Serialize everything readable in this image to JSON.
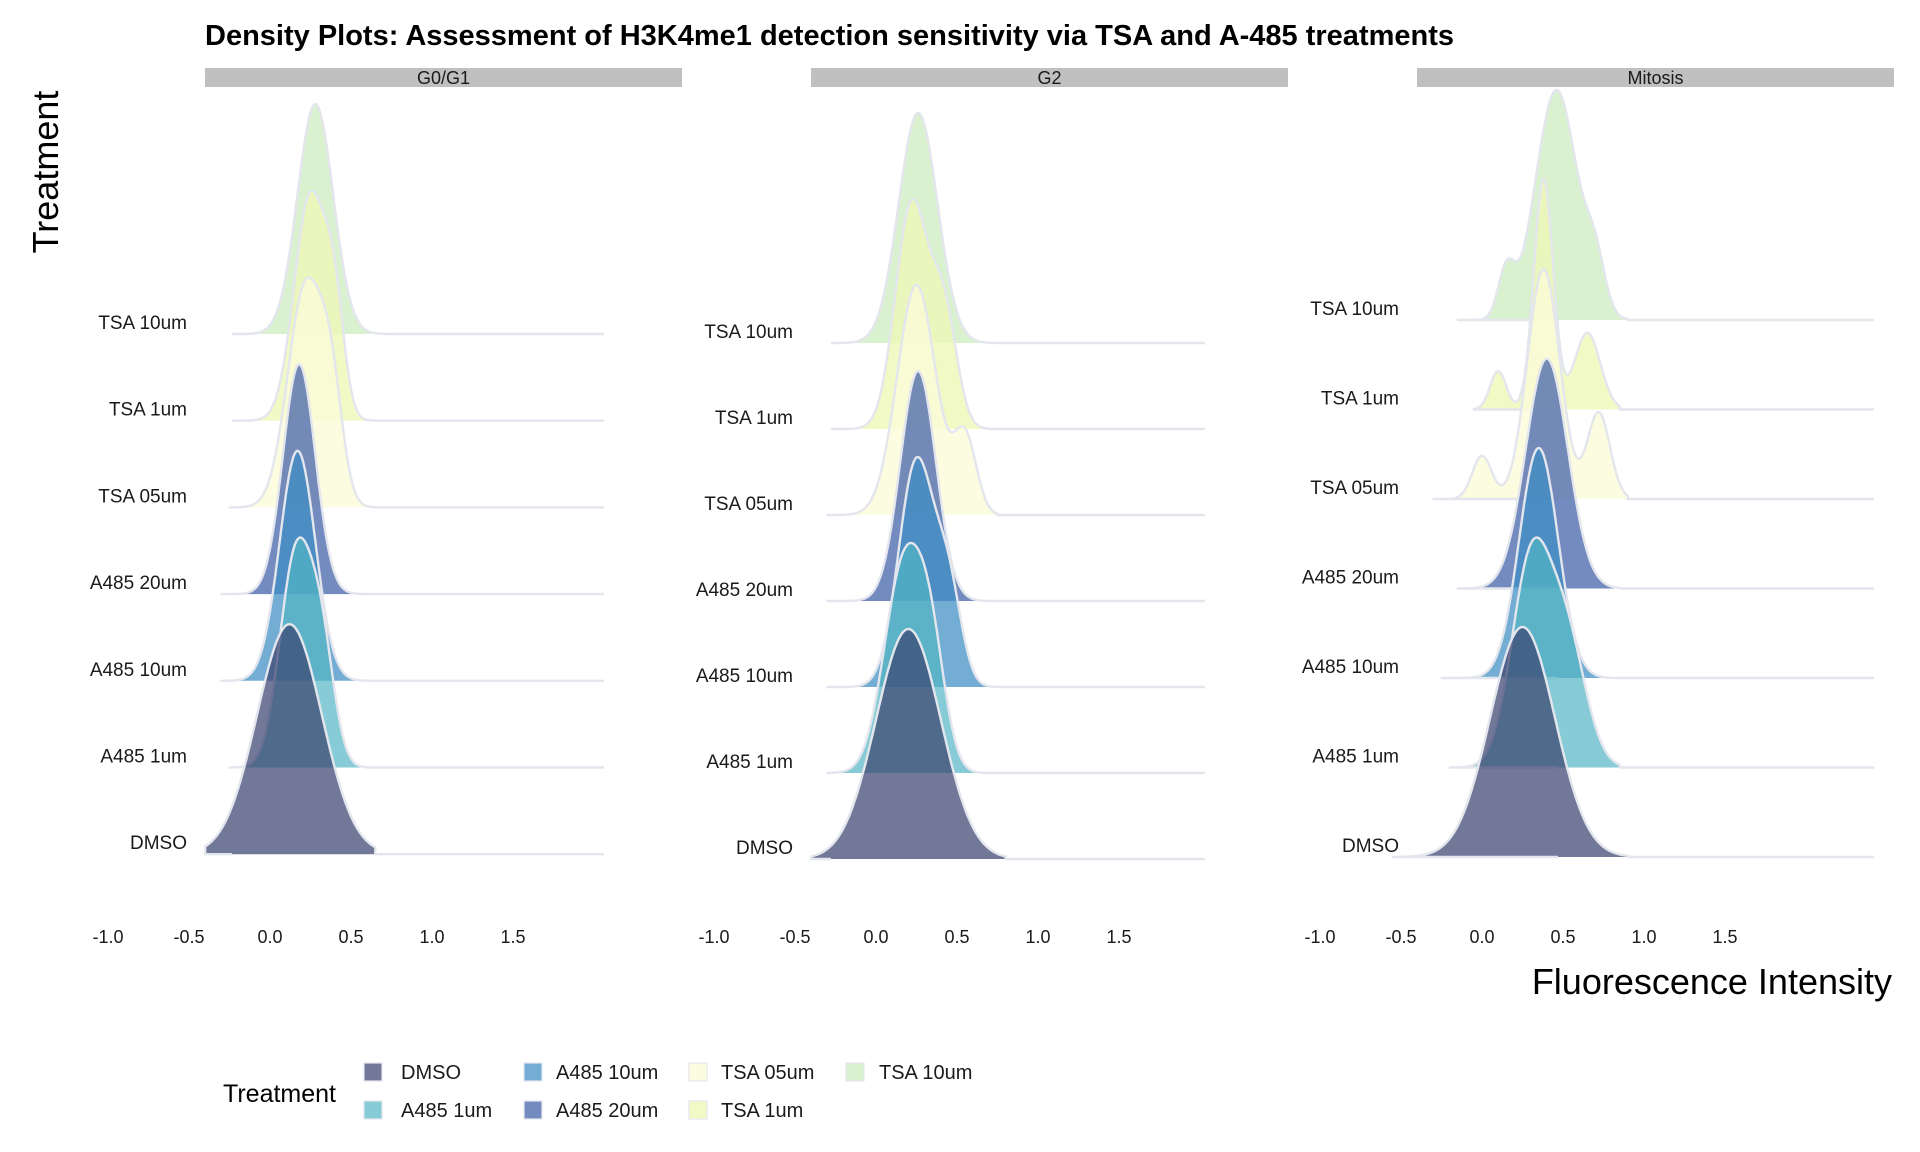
{
  "chart_data": {
    "type": "ridgeline-density",
    "title": "Density Plots: Assessment of H3K4me1 detection sensitivity via TSA and A-485 treatments",
    "xlabel": "Fluorescence Intensity",
    "ylabel": "Treatment",
    "x_ticks": [
      "-1.0",
      "-0.5",
      "0.0",
      "0.5",
      "1.0",
      "1.5"
    ],
    "xlim": [
      -1.0,
      1.5
    ],
    "treatments": [
      "DMSO",
      "A485 1um",
      "A485 10um",
      "A485 20um",
      "TSA 05um",
      "TSA 1um",
      "TSA 10um"
    ],
    "colors": {
      "DMSO": "#3b4470",
      "A485 1um": "#52b5c3",
      "A485 10um": "#3d8ec4",
      "A485 20um": "#3f5ea8",
      "TSA 05um": "#fbfbd8",
      "TSA 1um": "#eef8b6",
      "TSA 10um": "#cfeec2"
    },
    "alphas": {
      "DMSO": 0.72,
      "A485 1um": 0.7,
      "A485 10um": 0.72,
      "A485 20um": 0.72,
      "TSA 05um": 0.8,
      "TSA 1um": 0.8,
      "TSA 10um": 0.8
    },
    "panels": [
      {
        "name": "G0/G1",
        "series": [
          {
            "treatment": "DMSO",
            "range": [
              -0.4,
              0.65
            ],
            "components": [
              [
                1.0,
                0.12,
                0.2
              ]
            ]
          },
          {
            "treatment": "A485 1um",
            "range": [
              -0.25,
              0.6
            ],
            "components": [
              [
                0.8,
                0.16,
                0.1
              ],
              [
                0.4,
                0.32,
                0.08
              ]
            ]
          },
          {
            "treatment": "A485 10um",
            "range": [
              -0.3,
              0.65
            ],
            "components": [
              [
                1.0,
                0.17,
                0.11
              ]
            ]
          },
          {
            "treatment": "A485 20um",
            "range": [
              -0.3,
              0.65
            ],
            "components": [
              [
                1.0,
                0.18,
                0.1
              ]
            ]
          },
          {
            "treatment": "TSA 05um",
            "range": [
              -0.25,
              0.7
            ],
            "components": [
              [
                0.85,
                0.22,
                0.11
              ],
              [
                0.35,
                0.38,
                0.07
              ]
            ]
          },
          {
            "treatment": "TSA 1um",
            "range": [
              -0.2,
              0.7
            ],
            "components": [
              [
                0.9,
                0.25,
                0.1
              ],
              [
                0.35,
                0.4,
                0.06
              ]
            ]
          },
          {
            "treatment": "TSA 10um",
            "range": [
              -0.15,
              0.75
            ],
            "components": [
              [
                1.0,
                0.28,
                0.11
              ]
            ]
          }
        ]
      },
      {
        "name": "G2",
        "series": [
          {
            "treatment": "DMSO",
            "range": [
              -0.4,
              0.8
            ],
            "components": [
              [
                1.0,
                0.2,
                0.2
              ]
            ]
          },
          {
            "treatment": "A485 1um",
            "range": [
              -0.3,
              0.7
            ],
            "components": [
              [
                0.8,
                0.17,
                0.12
              ],
              [
                0.4,
                0.34,
                0.09
              ]
            ]
          },
          {
            "treatment": "A485 10um",
            "range": [
              -0.3,
              0.75
            ],
            "components": [
              [
                0.9,
                0.25,
                0.11
              ],
              [
                0.35,
                0.45,
                0.08
              ]
            ]
          },
          {
            "treatment": "A485 20um",
            "range": [
              -0.3,
              0.75
            ],
            "components": [
              [
                1.0,
                0.26,
                0.11
              ]
            ]
          },
          {
            "treatment": "TSA 05um",
            "range": [
              -0.3,
              0.75
            ],
            "components": [
              [
                0.9,
                0.25,
                0.12
              ],
              [
                0.3,
                0.55,
                0.07
              ]
            ]
          },
          {
            "treatment": "TSA 1um",
            "range": [
              -0.25,
              0.75
            ],
            "components": [
              [
                0.9,
                0.22,
                0.1
              ],
              [
                0.45,
                0.42,
                0.08
              ]
            ]
          },
          {
            "treatment": "TSA 10um",
            "range": [
              -0.2,
              0.8
            ],
            "components": [
              [
                1.0,
                0.26,
                0.12
              ]
            ]
          }
        ]
      },
      {
        "name": "Mitosis",
        "series": [
          {
            "treatment": "DMSO",
            "range": [
              -0.55,
              0.9
            ],
            "components": [
              [
                1.0,
                0.25,
                0.2
              ]
            ]
          },
          {
            "treatment": "A485 1um",
            "range": [
              -0.2,
              0.85
            ],
            "components": [
              [
                0.8,
                0.3,
                0.12
              ],
              [
                0.5,
                0.52,
                0.12
              ]
            ]
          },
          {
            "treatment": "A485 10um",
            "range": [
              -0.25,
              0.85
            ],
            "components": [
              [
                1.0,
                0.35,
                0.12
              ]
            ]
          },
          {
            "treatment": "A485 20um",
            "range": [
              -0.15,
              0.85
            ],
            "components": [
              [
                1.0,
                0.4,
                0.13
              ]
            ]
          },
          {
            "treatment": "TSA 05um",
            "range": [
              -0.3,
              0.9
            ],
            "components": [
              [
                0.8,
                0.38,
                0.1
              ],
              [
                0.3,
                0.72,
                0.07
              ],
              [
                0.15,
                0.0,
                0.06
              ]
            ]
          },
          {
            "treatment": "TSA 1um",
            "range": [
              -0.05,
              0.85
            ],
            "components": [
              [
                0.9,
                0.38,
                0.06
              ],
              [
                0.3,
                0.65,
                0.08
              ],
              [
                0.15,
                0.1,
                0.05
              ]
            ]
          },
          {
            "treatment": "TSA 10um",
            "range": [
              -0.15,
              0.9
            ],
            "components": [
              [
                1.0,
                0.46,
                0.13
              ],
              [
                0.2,
                0.15,
                0.05
              ],
              [
                0.2,
                0.7,
                0.06
              ]
            ]
          }
        ]
      }
    ],
    "legend": {
      "title": "Treatment",
      "position": "bottom-left",
      "items": [
        "DMSO",
        "A485 1um",
        "A485 10um",
        "A485 20um",
        "TSA 05um",
        "TSA 1um",
        "TSA 10um"
      ]
    }
  }
}
